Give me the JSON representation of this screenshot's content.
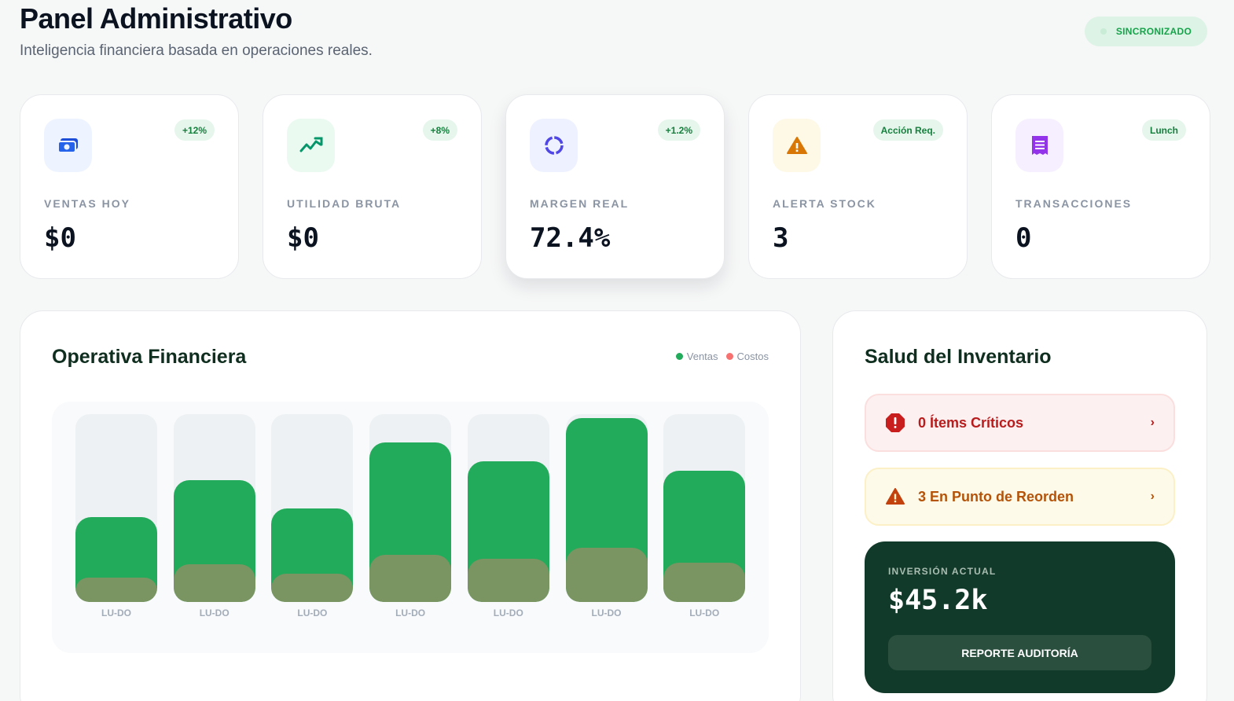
{
  "header": {
    "title": "Panel Administrativo",
    "subtitle": "Inteligencia financiera basada en operaciones reales.",
    "status_badge": "SINCRONIZADO"
  },
  "kpis": [
    {
      "label": "VENTAS HOY",
      "value": "$0",
      "badge": "+12%",
      "icon": "cash-icon",
      "icon_bg": "#eef4ff",
      "icon_color": "#2563eb",
      "badge_bg": "#e6f6ec",
      "badge_color": "#15803d"
    },
    {
      "label": "UTILIDAD BRUTA",
      "value": "$0",
      "badge": "+8%",
      "icon": "trend-up-icon",
      "icon_bg": "#eafaf1",
      "icon_color": "#059669",
      "badge_bg": "#e6f6ec",
      "badge_color": "#15803d"
    },
    {
      "label": "MARGEN REAL",
      "value": "72.4%",
      "badge": "+1.2%",
      "icon": "donut-icon",
      "icon_bg": "#eef1ff",
      "icon_color": "#4f46e5",
      "badge_bg": "#e6f6ec",
      "badge_color": "#15803d"
    },
    {
      "label": "ALERTA STOCK",
      "value": "3",
      "badge": "Acción Req.",
      "icon": "warning-icon",
      "icon_bg": "#fef8e6",
      "icon_color": "#d97706",
      "badge_bg": "#e6f6ec",
      "badge_color": "#15803d"
    },
    {
      "label": "TRANSACCIONES",
      "value": "0",
      "badge": "Lunch",
      "icon": "receipt-icon",
      "icon_bg": "#f6efff",
      "icon_color": "#9333ea",
      "badge_bg": "#e6f6ec",
      "badge_color": "#15803d"
    }
  ],
  "chart_panel": {
    "title": "Operativa Financiera",
    "legend": [
      {
        "name": "Ventas",
        "color": "#22ab5a"
      },
      {
        "name": "Costos",
        "color": "#f87171"
      }
    ]
  },
  "chart_data": {
    "type": "bar",
    "categories": [
      "LU-DO",
      "LU-DO",
      "LU-DO",
      "LU-DO",
      "LU-DO",
      "LU-DO",
      "LU-DO"
    ],
    "series": [
      {
        "name": "Ventas",
        "values": [
          45,
          65,
          50,
          85,
          75,
          98,
          70
        ]
      },
      {
        "name": "Costos",
        "values": [
          13,
          20,
          15,
          25,
          23,
          29,
          21
        ]
      }
    ],
    "ylim": [
      0,
      100
    ],
    "grid": false,
    "legend_position": "top-right"
  },
  "inventory_panel": {
    "title": "Salud del Inventario",
    "critical_label": "0 Ítems Críticos",
    "reorder_label": "3 En Punto de Reorden",
    "investment_label": "INVERSIÓN ACTUAL",
    "investment_value": "$45.2k",
    "report_button": "REPORTE AUDITORÍA"
  }
}
